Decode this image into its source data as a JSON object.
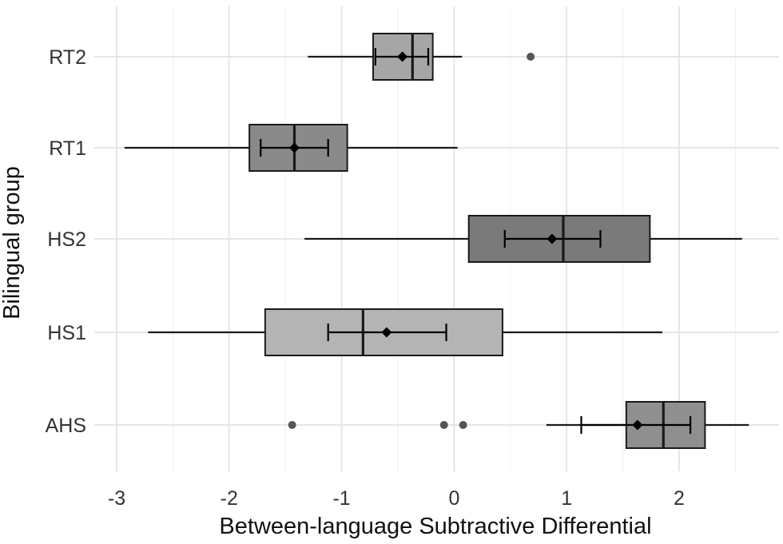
{
  "chart_data": {
    "type": "boxplot",
    "orientation": "horizontal",
    "xlabel": "Between-language Subtractive Differential",
    "ylabel": "Bilingual group",
    "xlim": [
      -3.15,
      2.9
    ],
    "x_ticks": [
      -3,
      -2,
      -1,
      0,
      1,
      2
    ],
    "x_tick_labels": [
      "-3",
      "-2",
      "-1",
      "0",
      "1",
      "2"
    ],
    "grid": true,
    "legend": "none",
    "categories": [
      "RT2",
      "RT1",
      "HS2",
      "HS1",
      "AHS"
    ],
    "boxes": [
      {
        "group": "RT2",
        "whisker_low": -1.3,
        "q1": -0.72,
        "median": -0.37,
        "q3": -0.19,
        "whisker_high": 0.07,
        "outliers": [
          0.68
        ],
        "mean": -0.46,
        "mean_ci": [
          -0.7,
          -0.23
        ],
        "fill": "#a6a6a6"
      },
      {
        "group": "RT1",
        "whisker_low": -2.93,
        "q1": -1.82,
        "median": -1.42,
        "q3": -0.95,
        "whisker_high": 0.03,
        "outliers": [],
        "mean": -1.42,
        "mean_ci": [
          -1.72,
          -1.12
        ],
        "fill": "#8a8a8a"
      },
      {
        "group": "HS2",
        "whisker_low": -1.33,
        "q1": 0.13,
        "median": 0.97,
        "q3": 1.74,
        "whisker_high": 2.56,
        "outliers": [],
        "mean": 0.87,
        "mean_ci": [
          0.45,
          1.3
        ],
        "fill": "#7a7a7a"
      },
      {
        "group": "HS1",
        "whisker_low": -2.72,
        "q1": -1.68,
        "median": -0.81,
        "q3": 0.43,
        "whisker_high": 1.85,
        "outliers": [],
        "mean": -0.6,
        "mean_ci": [
          -1.12,
          -0.07
        ],
        "fill": "#b4b4b4"
      },
      {
        "group": "AHS",
        "whisker_low": 0.82,
        "q1": 1.53,
        "median": 1.86,
        "q3": 2.23,
        "whisker_high": 2.62,
        "outliers": [
          -1.44,
          -0.09,
          0.08
        ],
        "mean": 1.63,
        "mean_ci": [
          1.13,
          2.1
        ],
        "fill": "#8f8f8f"
      }
    ]
  },
  "style": {
    "box_stroke": "#1a1a1a",
    "whisker_color": "#1a1a1a",
    "outlier_color": "#555555",
    "mean_marker_color": "#000000"
  }
}
